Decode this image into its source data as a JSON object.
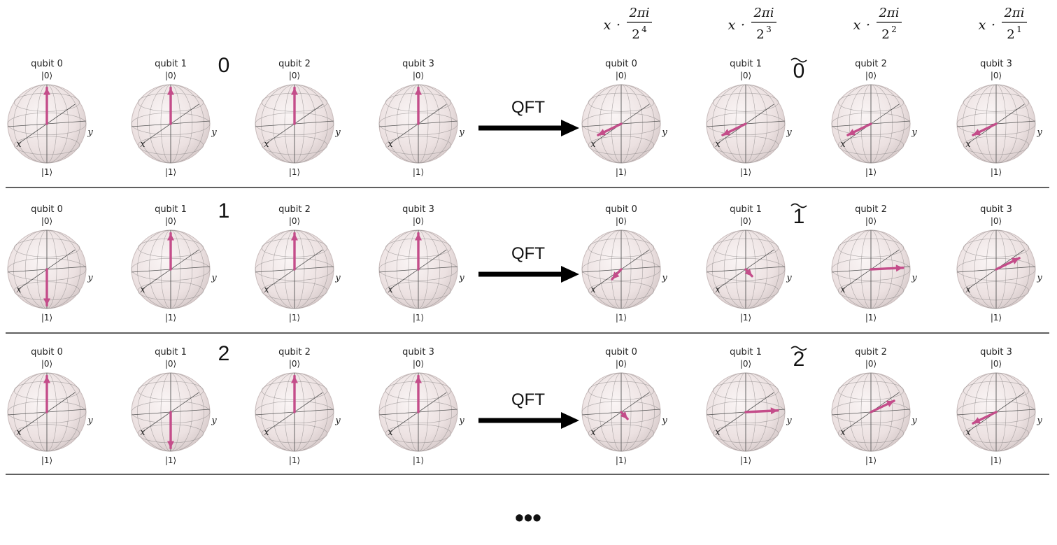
{
  "phase_headers": [
    {
      "x_symbol": "x",
      "dot": "·",
      "numerator": "2πi",
      "base": "2",
      "exponent": "4"
    },
    {
      "x_symbol": "x",
      "dot": "·",
      "numerator": "2πi",
      "base": "2",
      "exponent": "3"
    },
    {
      "x_symbol": "x",
      "dot": "·",
      "numerator": "2πi",
      "base": "2",
      "exponent": "2"
    },
    {
      "x_symbol": "x",
      "dot": "·",
      "numerator": "2πi",
      "base": "2",
      "exponent": "1"
    }
  ],
  "ket0": "|0⟩",
  "ket1": "|1⟩",
  "axis_x": "x",
  "axis_y": "y",
  "qft_label": "QFT",
  "ellipsis": "•••",
  "rows": [
    {
      "input_number": "0",
      "output_number": "0",
      "input_qubits": [
        {
          "label": "qubit 0",
          "state": "up"
        },
        {
          "label": "qubit 1",
          "state": "up"
        },
        {
          "label": "qubit 2",
          "state": "up"
        },
        {
          "label": "qubit 3",
          "state": "up"
        }
      ],
      "output_qubits": [
        {
          "label": "qubit 0",
          "phase_deg": 0
        },
        {
          "label": "qubit 1",
          "phase_deg": 0
        },
        {
          "label": "qubit 2",
          "phase_deg": 0
        },
        {
          "label": "qubit 3",
          "phase_deg": 0
        }
      ]
    },
    {
      "input_number": "1",
      "output_number": "1",
      "input_qubits": [
        {
          "label": "qubit 0",
          "state": "down"
        },
        {
          "label": "qubit 1",
          "state": "up"
        },
        {
          "label": "qubit 2",
          "state": "up"
        },
        {
          "label": "qubit 3",
          "state": "up"
        }
      ],
      "output_qubits": [
        {
          "label": "qubit 0",
          "phase_deg": 22.5
        },
        {
          "label": "qubit 1",
          "phase_deg": 45
        },
        {
          "label": "qubit 2",
          "phase_deg": 90
        },
        {
          "label": "qubit 3",
          "phase_deg": 180
        }
      ]
    },
    {
      "input_number": "2",
      "output_number": "2",
      "input_qubits": [
        {
          "label": "qubit 0",
          "state": "up"
        },
        {
          "label": "qubit 1",
          "state": "down"
        },
        {
          "label": "qubit 2",
          "state": "up"
        },
        {
          "label": "qubit 3",
          "state": "up"
        }
      ],
      "output_qubits": [
        {
          "label": "qubit 0",
          "phase_deg": 45
        },
        {
          "label": "qubit 1",
          "phase_deg": 90
        },
        {
          "label": "qubit 2",
          "phase_deg": 180
        },
        {
          "label": "qubit 3",
          "phase_deg": 0
        }
      ]
    }
  ],
  "colors": {
    "vector": "#c44d8a",
    "sphere_fill": "#efe5e5",
    "sphere_grid": "#8e8a8a",
    "arrow": "#000000",
    "divider": "#000000"
  }
}
